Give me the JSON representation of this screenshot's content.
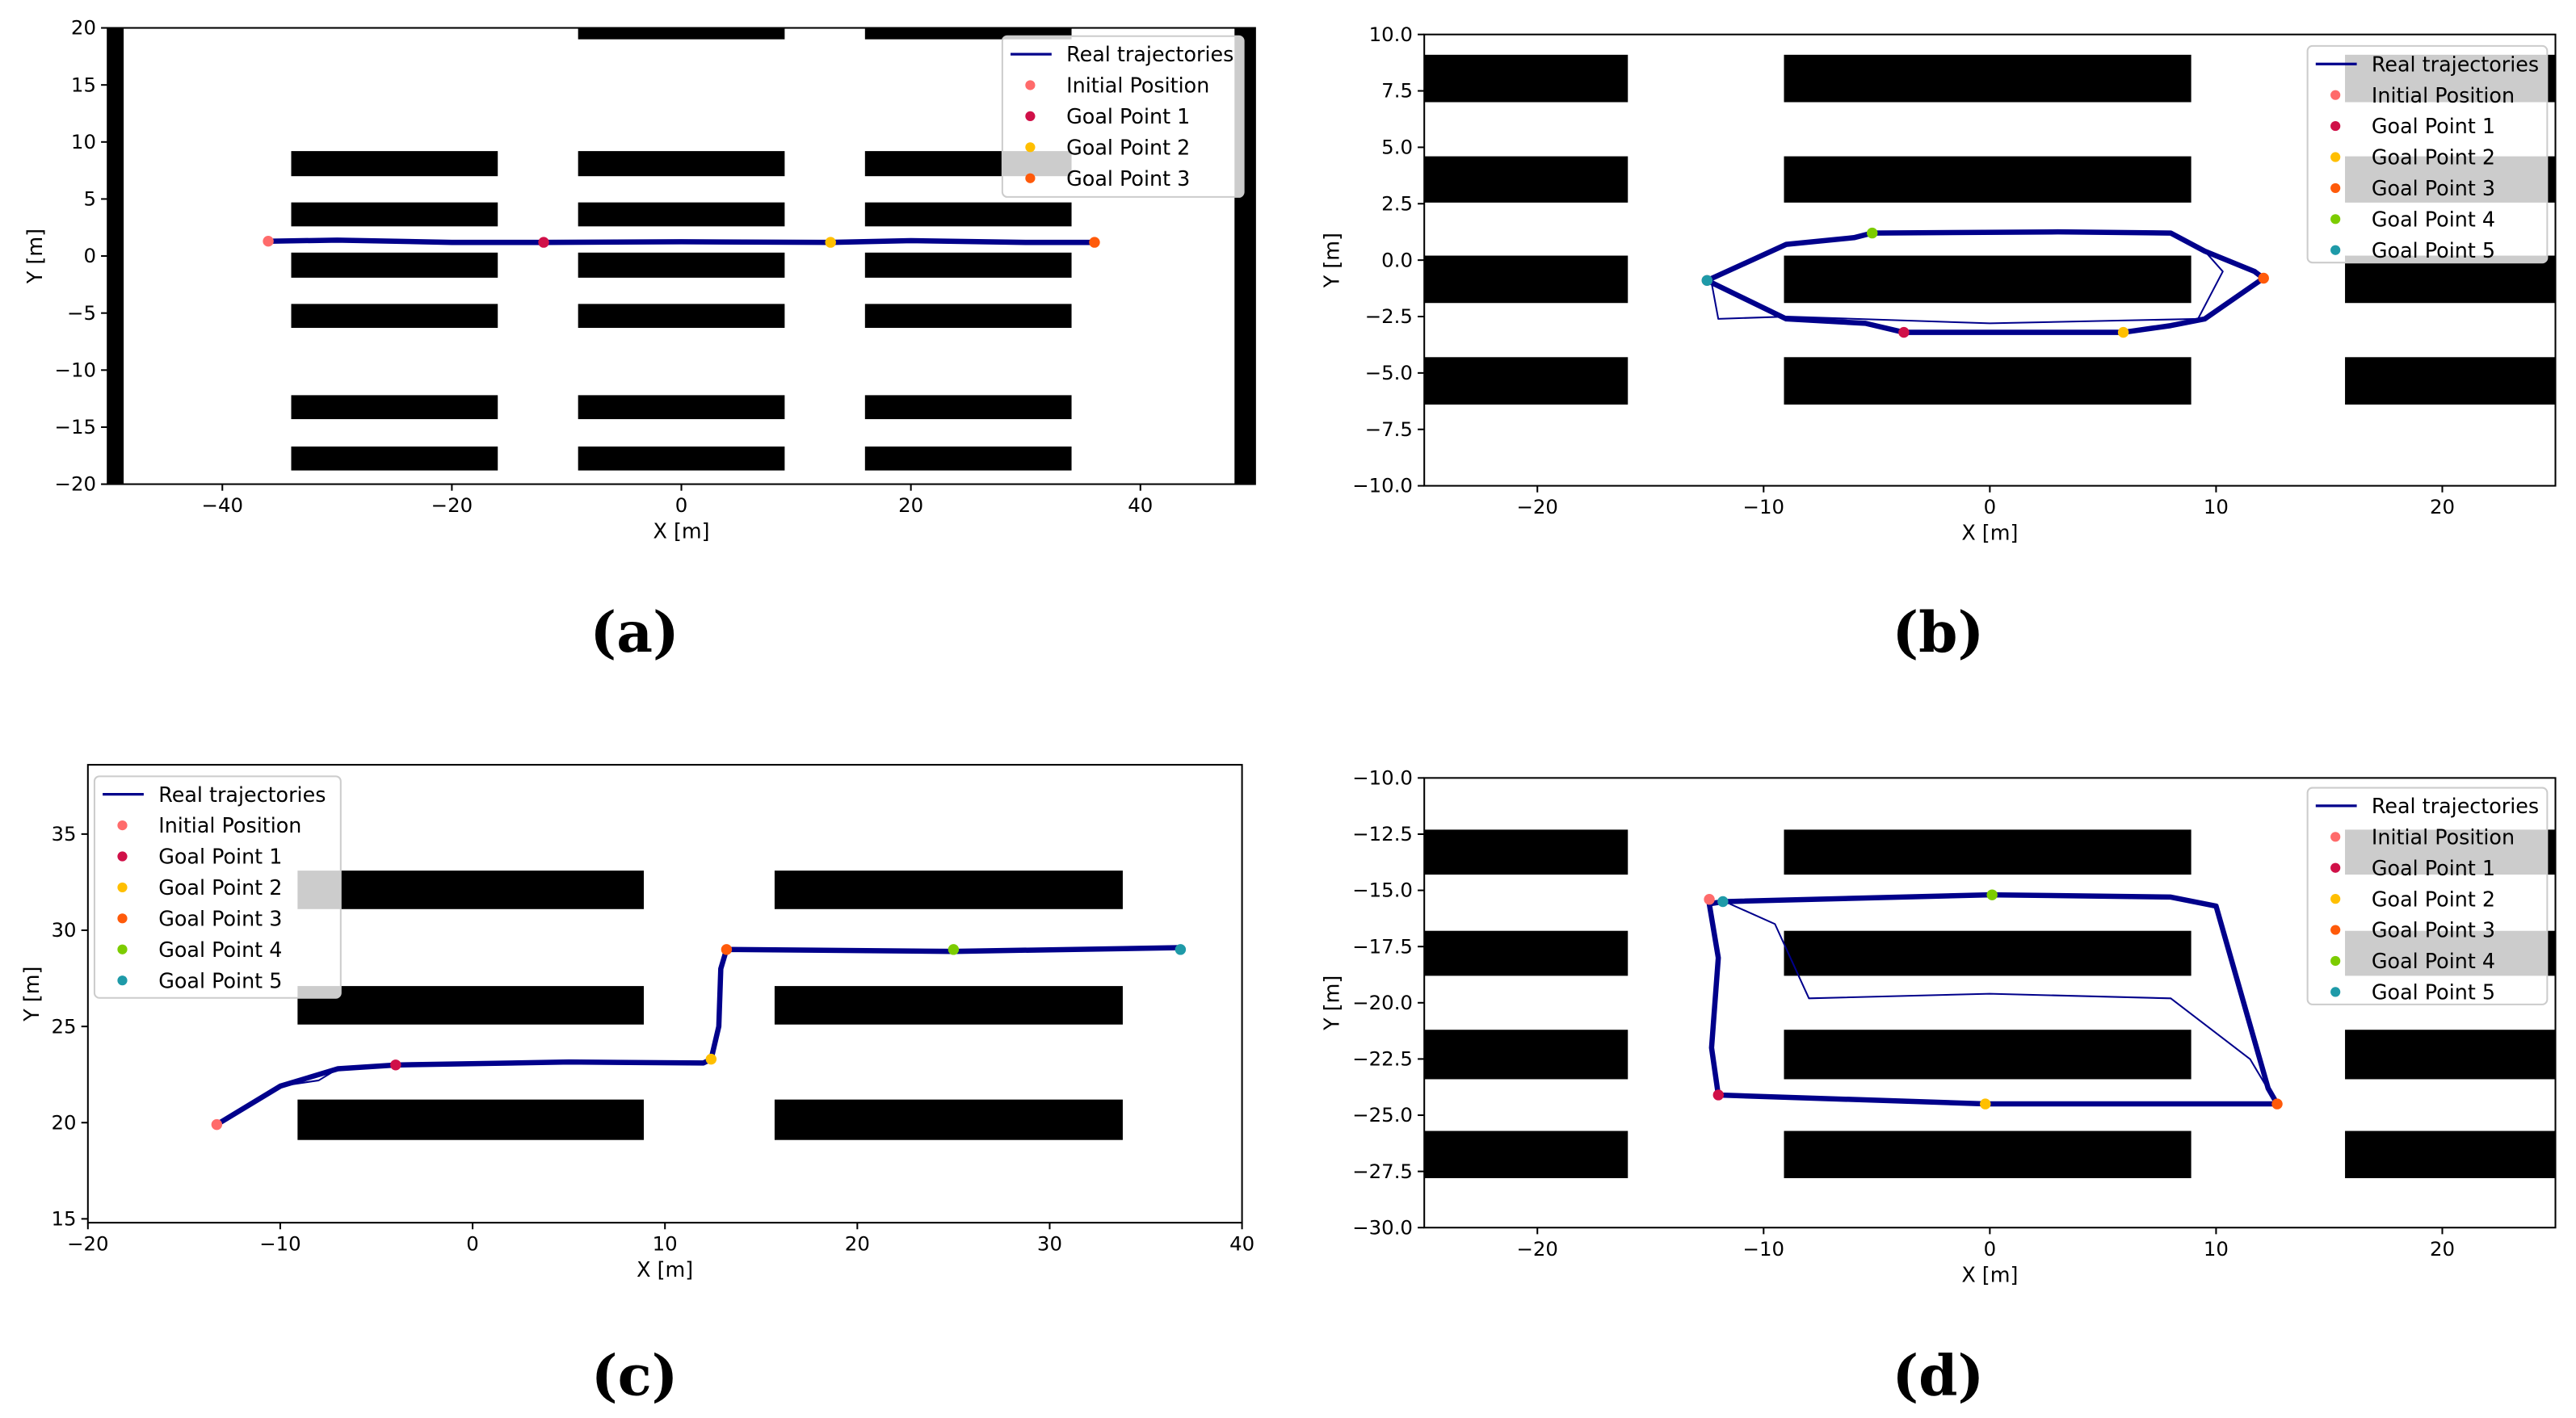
{
  "colors": {
    "trajectory": "#00008b",
    "initial": "#ff6b6b",
    "goal1": "#d01048",
    "goal2": "#ffbf00",
    "goal3": "#ff5a0a",
    "goal4": "#7ccc00",
    "goal5": "#1e9aa8",
    "obstacle": "#000000"
  },
  "chart_data": [
    {
      "panel_label": "(a)",
      "type": "line",
      "xlabel": "X [m]",
      "ylabel": "Y [m]",
      "xlim": [
        -50,
        50
      ],
      "ylim": [
        -20,
        20
      ],
      "xticks": [
        -40,
        -20,
        0,
        20,
        40
      ],
      "xtick_labels": [
        "−40",
        "−20",
        "0",
        "20",
        "40"
      ],
      "yticks": [
        20,
        15,
        10,
        5,
        0,
        -5,
        -10,
        -15,
        -20
      ],
      "ytick_labels": [
        "20",
        "15",
        "10",
        "5",
        "0",
        "−5",
        "−10",
        "−15",
        "−20"
      ],
      "grid": false,
      "legend_placement": "top-right",
      "legend": [
        "Real trajectories",
        "Initial Position",
        "Goal Point 1",
        "Goal Point 2",
        "Goal Point 3"
      ],
      "obstacles": [
        [
          -50,
          -48.6,
          -20,
          20
        ],
        [
          48.2,
          50,
          -20,
          20
        ],
        [
          -9,
          9,
          19,
          20
        ],
        [
          16,
          34,
          19,
          20
        ],
        [
          -34,
          -16,
          7,
          9.2
        ],
        [
          -9,
          9,
          7,
          9.2
        ],
        [
          16,
          34,
          7,
          9.2
        ],
        [
          -34,
          -16,
          2.6,
          4.7
        ],
        [
          -9,
          9,
          2.6,
          4.7
        ],
        [
          16,
          34,
          2.6,
          4.7
        ],
        [
          -34,
          -16,
          -1.9,
          0.3
        ],
        [
          -9,
          9,
          -1.9,
          0.3
        ],
        [
          16,
          34,
          -1.9,
          0.3
        ],
        [
          -34,
          -16,
          -6.3,
          -4.2
        ],
        [
          -9,
          9,
          -6.3,
          -4.2
        ],
        [
          16,
          34,
          -6.3,
          -4.2
        ],
        [
          -34,
          -16,
          -14.3,
          -12.2
        ],
        [
          -9,
          9,
          -14.3,
          -12.2
        ],
        [
          16,
          34,
          -14.3,
          -12.2
        ],
        [
          -34,
          -16,
          -18.8,
          -16.7
        ],
        [
          -9,
          9,
          -18.8,
          -16.7
        ],
        [
          16,
          34,
          -18.8,
          -16.7
        ]
      ],
      "trajectory": [
        [
          -36,
          1.3
        ],
        [
          -30,
          1.4
        ],
        [
          -20,
          1.2
        ],
        [
          -12,
          1.2
        ],
        [
          0,
          1.25
        ],
        [
          13,
          1.2
        ],
        [
          20,
          1.35
        ],
        [
          30,
          1.2
        ],
        [
          36,
          1.2
        ]
      ],
      "points": [
        {
          "name": "Initial Position",
          "color_key": "initial",
          "x": -36,
          "y": 1.3
        },
        {
          "name": "Goal Point 1",
          "color_key": "goal1",
          "x": -12,
          "y": 1.2
        },
        {
          "name": "Goal Point 2",
          "color_key": "goal2",
          "x": 13,
          "y": 1.2
        },
        {
          "name": "Goal Point 3",
          "color_key": "goal3",
          "x": 36,
          "y": 1.2
        }
      ]
    },
    {
      "panel_label": "(b)",
      "type": "line",
      "xlabel": "X [m]",
      "ylabel": "Y [m]",
      "xlim": [
        -25,
        25
      ],
      "ylim": [
        -10,
        10
      ],
      "xticks": [
        -20,
        -10,
        0,
        10,
        20
      ],
      "xtick_labels": [
        "−20",
        "−10",
        "0",
        "10",
        "20"
      ],
      "yticks": [
        10,
        7.5,
        5,
        2.5,
        0,
        -2.5,
        -5,
        -7.5,
        -10
      ],
      "ytick_labels": [
        "10.0",
        "7.5",
        "5.0",
        "2.5",
        "0.0",
        "−2.5",
        "−5.0",
        "−7.5",
        "−10.0"
      ],
      "grid": false,
      "legend_placement": "top-right",
      "legend": [
        "Real trajectories",
        "Initial Position",
        "Goal Point 1",
        "Goal Point 2",
        "Goal Point 3",
        "Goal Point 4",
        "Goal Point 5"
      ],
      "obstacles": [
        [
          -25,
          -16,
          7,
          9.1
        ],
        [
          -9.1,
          8.9,
          7,
          9.1
        ],
        [
          15.7,
          25,
          7,
          9.1
        ],
        [
          -25,
          -16,
          2.55,
          4.6
        ],
        [
          -9.1,
          8.9,
          2.55,
          4.6
        ],
        [
          15.7,
          25,
          2.55,
          4.6
        ],
        [
          -25,
          -16,
          -1.9,
          0.2
        ],
        [
          -9.1,
          8.9,
          -1.9,
          0.2
        ],
        [
          15.7,
          25,
          -1.9,
          0.2
        ],
        [
          -25,
          -16,
          -6.4,
          -4.3
        ],
        [
          -9.1,
          8.9,
          -6.4,
          -4.3
        ],
        [
          15.7,
          25,
          -6.4,
          -4.3
        ]
      ],
      "trajectory": [
        [
          -12.5,
          -0.9
        ],
        [
          -9,
          0.7
        ],
        [
          -6,
          1.0
        ],
        [
          -5.2,
          1.2
        ],
        [
          3,
          1.25
        ],
        [
          8,
          1.2
        ],
        [
          9.5,
          0.4
        ],
        [
          11.7,
          -0.5
        ],
        [
          12.1,
          -0.8
        ],
        [
          9.5,
          -2.6
        ],
        [
          8,
          -2.9
        ],
        [
          5.9,
          -3.2
        ],
        [
          -3.8,
          -3.2
        ],
        [
          -5.5,
          -2.8
        ],
        [
          -9,
          -2.6
        ],
        [
          -12.5,
          -0.9
        ]
      ],
      "stray_trajectory": [
        [
          -12.3,
          -1.0
        ],
        [
          -12,
          -2.6
        ],
        [
          -9,
          -2.5
        ],
        [
          0,
          -2.8
        ],
        [
          9.2,
          -2.6
        ],
        [
          10.3,
          -0.5
        ],
        [
          9.5,
          0.4
        ]
      ],
      "points": [
        {
          "name": "Initial Position",
          "color_key": "initial",
          "x": -12.5,
          "y": -0.9
        },
        {
          "name": "Goal Point 1",
          "color_key": "goal1",
          "x": -3.8,
          "y": -3.2
        },
        {
          "name": "Goal Point 2",
          "color_key": "goal2",
          "x": 5.9,
          "y": -3.2
        },
        {
          "name": "Goal Point 3",
          "color_key": "goal3",
          "x": 12.1,
          "y": -0.8
        },
        {
          "name": "Goal Point 4",
          "color_key": "goal4",
          "x": -5.2,
          "y": 1.2
        },
        {
          "name": "Goal Point 5",
          "color_key": "goal5",
          "x": -12.5,
          "y": -0.9
        }
      ]
    },
    {
      "panel_label": "(c)",
      "type": "line",
      "xlabel": "X [m]",
      "ylabel": "Y [m]",
      "xlim": [
        -20,
        40
      ],
      "ylim": [
        14.8,
        38.6
      ],
      "xticks": [
        -20,
        -10,
        0,
        10,
        20,
        30,
        40
      ],
      "xtick_labels": [
        "−20",
        "−10",
        "0",
        "10",
        "20",
        "30",
        "40"
      ],
      "yticks": [
        35,
        30,
        25,
        20,
        15
      ],
      "ytick_labels": [
        "35",
        "30",
        "25",
        "20",
        "15"
      ],
      "grid": false,
      "legend_placement": "top-left",
      "legend": [
        "Real trajectories",
        "Initial Position",
        "Goal Point 1",
        "Goal Point 2",
        "Goal Point 3",
        "Goal Point 4",
        "Goal Point 5"
      ],
      "obstacles": [
        [
          -9.1,
          8.9,
          31.1,
          33.1
        ],
        [
          15.7,
          33.8,
          31.1,
          33.1
        ],
        [
          -9.1,
          8.9,
          25.1,
          27.1
        ],
        [
          15.7,
          33.8,
          25.1,
          27.1
        ],
        [
          -9.1,
          8.9,
          19.1,
          21.2
        ],
        [
          15.7,
          33.8,
          19.1,
          21.2
        ]
      ],
      "trajectory": [
        [
          -13.3,
          19.9
        ],
        [
          -10,
          21.9
        ],
        [
          -7,
          22.8
        ],
        [
          -4,
          23
        ],
        [
          5,
          23.15
        ],
        [
          12,
          23.1
        ],
        [
          12.4,
          23.3
        ],
        [
          12.8,
          25
        ],
        [
          12.9,
          28
        ],
        [
          13.2,
          29
        ],
        [
          25,
          28.9
        ],
        [
          36.8,
          29.1
        ]
      ],
      "stray_trajectory": [
        [
          -10,
          21.9
        ],
        [
          -8,
          22.2
        ],
        [
          -7,
          22.8
        ]
      ],
      "points": [
        {
          "name": "Initial Position",
          "color_key": "initial",
          "x": -13.3,
          "y": 19.9
        },
        {
          "name": "Goal Point 1",
          "color_key": "goal1",
          "x": -4,
          "y": 23
        },
        {
          "name": "Goal Point 2",
          "color_key": "goal2",
          "x": 12.4,
          "y": 23.3
        },
        {
          "name": "Goal Point 3",
          "color_key": "goal3",
          "x": 13.2,
          "y": 29
        },
        {
          "name": "Goal Point 4",
          "color_key": "goal4",
          "x": 25,
          "y": 29
        },
        {
          "name": "Goal Point 5",
          "color_key": "goal5",
          "x": 36.8,
          "y": 29
        }
      ]
    },
    {
      "panel_label": "(d)",
      "type": "line",
      "xlabel": "X [m]",
      "ylabel": "Y [m]",
      "xlim": [
        -25,
        25
      ],
      "ylim": [
        -30,
        -10
      ],
      "xticks": [
        -20,
        -10,
        0,
        10,
        20
      ],
      "xtick_labels": [
        "−20",
        "−10",
        "0",
        "10",
        "20"
      ],
      "yticks": [
        -10,
        -12.5,
        -15,
        -17.5,
        -20,
        -22.5,
        -25,
        -27.5,
        -30
      ],
      "ytick_labels": [
        "−10.0",
        "−12.5",
        "−15.0",
        "−17.5",
        "−20.0",
        "−22.5",
        "−25.0",
        "−27.5",
        "−30.0"
      ],
      "grid": false,
      "legend_placement": "top-right",
      "legend": [
        "Real trajectories",
        "Initial Position",
        "Goal Point 1",
        "Goal Point 2",
        "Goal Point 3",
        "Goal Point 4",
        "Goal Point 5"
      ],
      "obstacles": [
        [
          -25,
          -16,
          -14.3,
          -12.3
        ],
        [
          -9.1,
          8.9,
          -14.3,
          -12.3
        ],
        [
          15.7,
          25,
          -14.3,
          -12.3
        ],
        [
          -25,
          -16,
          -18.8,
          -16.8
        ],
        [
          -9.1,
          8.9,
          -18.8,
          -16.8
        ],
        [
          15.7,
          25,
          -18.8,
          -16.8
        ],
        [
          -25,
          -16,
          -23.4,
          -21.2
        ],
        [
          -9.1,
          8.9,
          -23.4,
          -21.2
        ],
        [
          15.7,
          25,
          -23.4,
          -21.2
        ],
        [
          -25,
          -16,
          -27.8,
          -25.7
        ],
        [
          -9.1,
          8.9,
          -27.8,
          -25.7
        ],
        [
          15.7,
          25,
          -27.8,
          -25.7
        ]
      ],
      "trajectory": [
        [
          -11.8,
          -15.5
        ],
        [
          0,
          -15.2
        ],
        [
          8,
          -15.3
        ],
        [
          10,
          -15.7
        ],
        [
          12.3,
          -23.8
        ],
        [
          12.7,
          -24.5
        ],
        [
          -0.2,
          -24.5
        ],
        [
          -12,
          -24.1
        ],
        [
          -12.3,
          -22
        ],
        [
          -12,
          -18
        ],
        [
          -12.4,
          -15.6
        ],
        [
          -11.8,
          -15.5
        ]
      ],
      "stray_trajectory": [
        [
          -11.5,
          -15.6
        ],
        [
          -9.5,
          -16.5
        ],
        [
          -8,
          -19.8
        ],
        [
          0,
          -19.6
        ],
        [
          8,
          -19.8
        ],
        [
          11.5,
          -22.5
        ],
        [
          12.5,
          -24.2
        ]
      ],
      "points": [
        {
          "name": "Initial Position",
          "color_key": "initial",
          "x": -12.4,
          "y": -15.4
        },
        {
          "name": "Goal Point 1",
          "color_key": "goal1",
          "x": -12,
          "y": -24.1
        },
        {
          "name": "Goal Point 2",
          "color_key": "goal2",
          "x": -0.2,
          "y": -24.5
        },
        {
          "name": "Goal Point 3",
          "color_key": "goal3",
          "x": 12.7,
          "y": -24.5
        },
        {
          "name": "Goal Point 4",
          "color_key": "goal4",
          "x": 0.1,
          "y": -15.2
        },
        {
          "name": "Goal Point 5",
          "color_key": "goal5",
          "x": -11.8,
          "y": -15.5
        }
      ]
    }
  ]
}
